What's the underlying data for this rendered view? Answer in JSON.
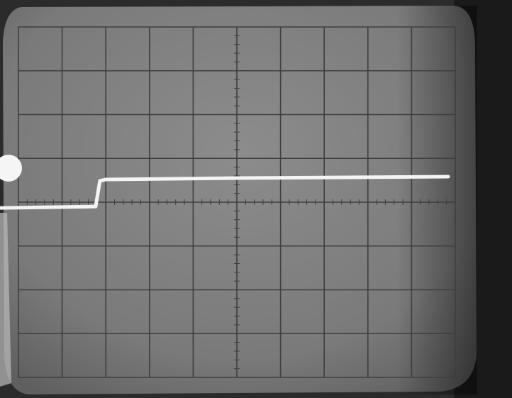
{
  "photo": {
    "subject": "oscilloscope-screen",
    "colors": {
      "screen": "#777777",
      "screen_light": "#8a8a8a",
      "grid": "#3e3e3e",
      "trace": "#f4f4f4",
      "bezel": "#2b2b2b",
      "paper": "#ffffff"
    },
    "graticule": {
      "major_divisions_x": 10,
      "major_divisions_y": 8,
      "minor_ticks_per_division": 5
    },
    "trace": {
      "shape": "step",
      "low_level_div": -0.1,
      "high_level_div": 0.55,
      "step_position_div": 1.8,
      "end_position_div": 10
    }
  }
}
